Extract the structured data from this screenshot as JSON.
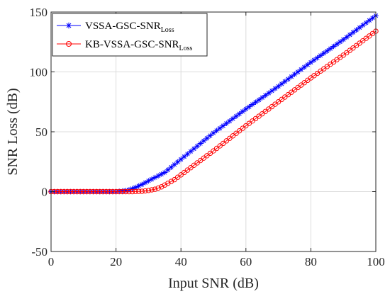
{
  "chart_data": {
    "type": "line",
    "title": "",
    "xlabel": "Input SNR (dB)",
    "ylabel": "SNR Loss (dB)",
    "xlim": [
      0,
      100
    ],
    "ylim": [
      -50,
      150
    ],
    "xticks": [
      0,
      20,
      40,
      60,
      80,
      100
    ],
    "yticks": [
      -50,
      0,
      50,
      100,
      150
    ],
    "grid": true,
    "legend_position": "top-left",
    "series": [
      {
        "name": "VSSA-GSC-SNR",
        "name_subscript": "Loss",
        "color": "#0000ff",
        "marker": "asterisk",
        "x": [
          0,
          10,
          20,
          22,
          24,
          26,
          28,
          30,
          35,
          40,
          50,
          60,
          70,
          80,
          90,
          100
        ],
        "y": [
          0,
          0,
          0,
          0.5,
          1.5,
          3.5,
          6,
          9,
          16,
          27,
          49,
          69,
          88,
          108,
          127,
          147
        ]
      },
      {
        "name": "KB-VSSA-GSC-SNR",
        "name_subscript": "Loss",
        "color": "#ff0000",
        "marker": "circle",
        "x": [
          0,
          10,
          20,
          25,
          28,
          30,
          32,
          34,
          36,
          38,
          40,
          50,
          60,
          70,
          80,
          90,
          100
        ],
        "y": [
          0,
          0,
          0,
          0,
          0.3,
          1,
          2,
          4,
          7,
          10,
          14,
          34,
          55,
          75,
          95,
          114,
          134
        ]
      }
    ]
  }
}
